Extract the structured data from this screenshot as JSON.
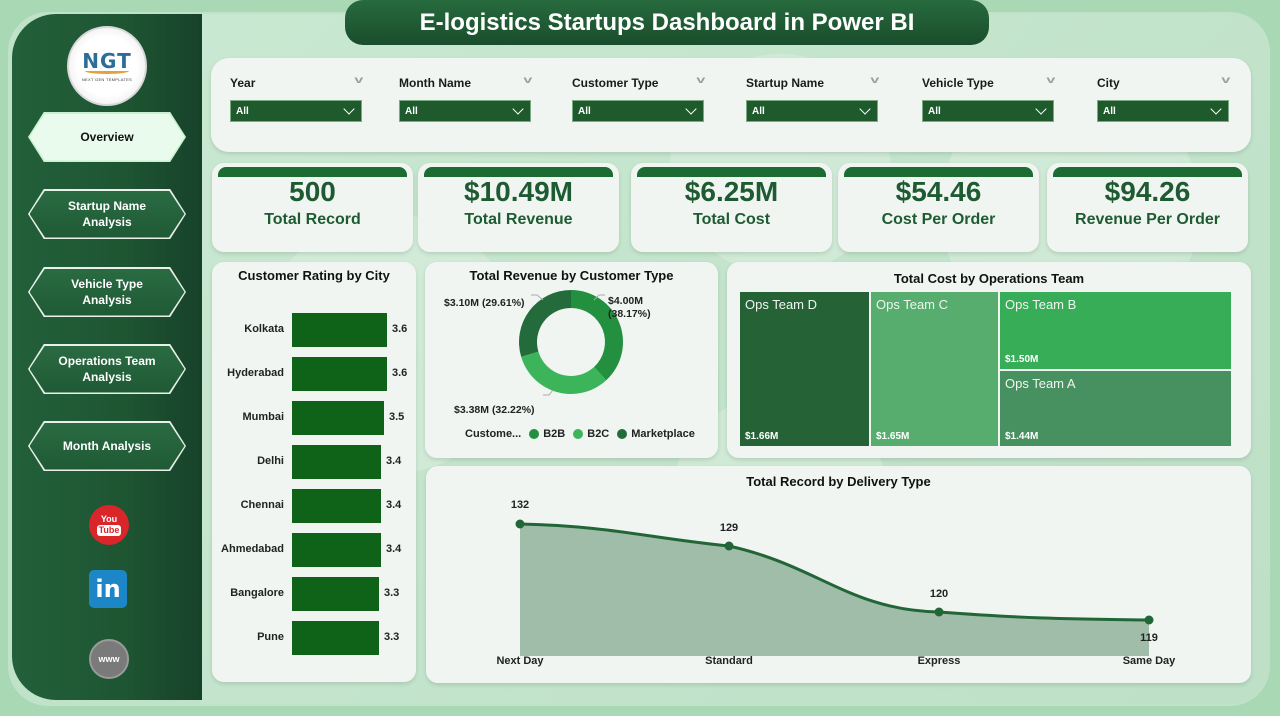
{
  "header": {
    "title": "E-logistics Startups Dashboard in Power BI"
  },
  "sidebar": {
    "logo": {
      "text": "NGT",
      "subtext": "NEXT GEN TEMPLATES"
    },
    "items": [
      {
        "label": "Overview",
        "active": true
      },
      {
        "label": "Startup Name Analysis",
        "active": false
      },
      {
        "label": "Vehicle Type Analysis",
        "active": false
      },
      {
        "label": "Operations Team Analysis",
        "active": false
      },
      {
        "label": "Month Analysis",
        "active": false
      }
    ],
    "social": [
      {
        "icon": "youtube-icon",
        "line1": "You",
        "line2": "Tube"
      },
      {
        "icon": "linkedin-icon",
        "text": "in"
      },
      {
        "icon": "globe-www-icon",
        "text": "www"
      }
    ]
  },
  "filters": [
    {
      "label": "Year",
      "value": "All"
    },
    {
      "label": "Month Name",
      "value": "All"
    },
    {
      "label": "Customer Type",
      "value": "All"
    },
    {
      "label": "Startup Name",
      "value": "All"
    },
    {
      "label": "Vehicle Type",
      "value": "All"
    },
    {
      "label": "City",
      "value": "All"
    }
  ],
  "kpis": [
    {
      "value": "500",
      "label": "Total Record"
    },
    {
      "value": "$10.49M",
      "label": "Total Revenue"
    },
    {
      "value": "$6.25M",
      "label": "Total Cost"
    },
    {
      "value": "$54.46",
      "label": "Cost Per Order"
    },
    {
      "value": "$94.26",
      "label": "Revenue Per Order"
    }
  ],
  "colors": {
    "dark_green": "#1e5a2c",
    "kpi_text": "#1f5b32",
    "bar": "#0f6318",
    "b2b": "#22903f",
    "b2c": "#3cb55a",
    "marketplace": "#236b3a",
    "area_fill": "#9fbda9",
    "area_line": "#226638"
  },
  "chart_data": [
    {
      "type": "bar",
      "title": "Customer Rating by City",
      "orientation": "horizontal",
      "categories": [
        "Kolkata",
        "Hyderabad",
        "Mumbai",
        "Delhi",
        "Chennai",
        "Ahmedabad",
        "Bangalore",
        "Pune"
      ],
      "values": [
        3.6,
        3.6,
        3.5,
        3.4,
        3.4,
        3.4,
        3.3,
        3.3
      ],
      "labels": [
        "3.6",
        "3.6",
        "3.5",
        "3.4",
        "3.4",
        "3.4",
        "3.3",
        "3.3"
      ]
    },
    {
      "type": "pie",
      "variant": "donut",
      "title": "Total Revenue by Customer Type",
      "legend_title": "Custome...",
      "categories": [
        "B2B",
        "B2C",
        "Marketplace"
      ],
      "values": [
        4.0,
        3.38,
        3.1
      ],
      "percents": [
        38.17,
        32.22,
        29.61
      ],
      "labels": [
        "$4.00M (38.17%)",
        "$3.38M (32.22%)",
        "$3.10M (29.61%)"
      ],
      "label_b2b_line1": "$4.00M",
      "label_b2b_line2": "(38.17%)",
      "legend_position": "bottom"
    },
    {
      "type": "treemap",
      "title": "Total Cost by Operations Team",
      "categories": [
        "Ops Team D",
        "Ops Team C",
        "Ops Team B",
        "Ops Team A"
      ],
      "values": [
        1.66,
        1.65,
        1.5,
        1.44
      ],
      "labels": [
        "$1.66M",
        "$1.65M",
        "$1.50M",
        "$1.44M"
      ]
    },
    {
      "type": "area",
      "title": "Total Record by Delivery Type",
      "categories": [
        "Next Day",
        "Standard",
        "Express",
        "Same Day"
      ],
      "values": [
        132,
        129,
        120,
        119
      ],
      "labels": [
        "132",
        "129",
        "120",
        "119"
      ]
    }
  ]
}
